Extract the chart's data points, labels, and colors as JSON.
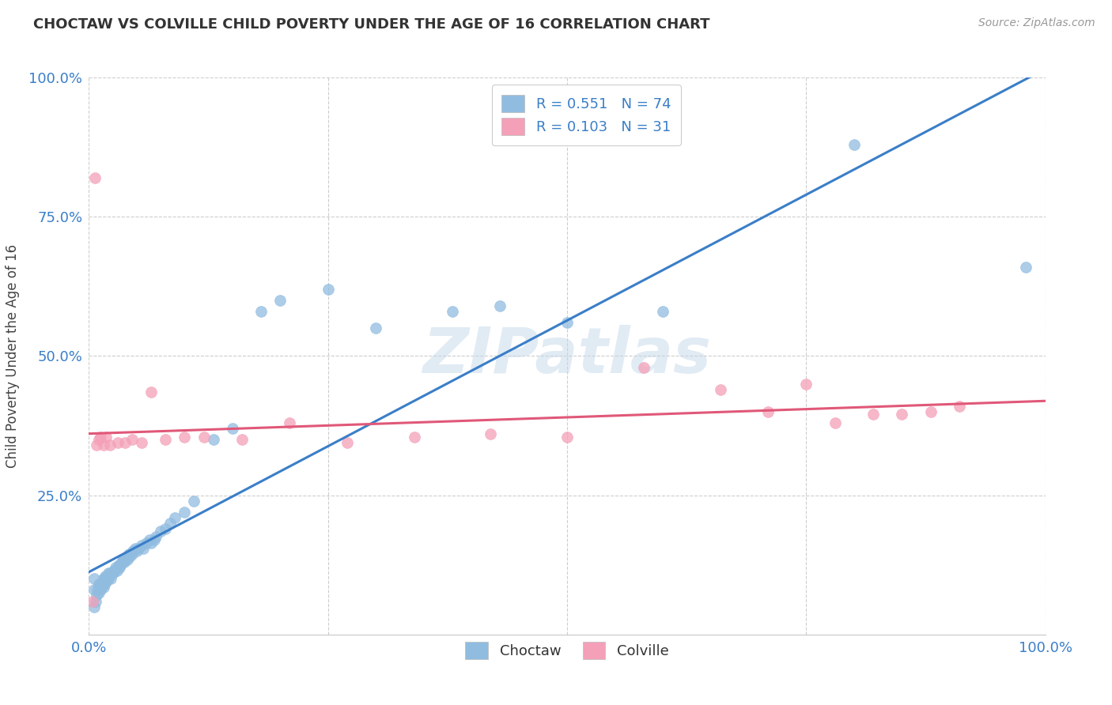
{
  "title": "CHOCTAW VS COLVILLE CHILD POVERTY UNDER THE AGE OF 16 CORRELATION CHART",
  "source": "Source: ZipAtlas.com",
  "ylabel": "Child Poverty Under the Age of 16",
  "xlim": [
    0,
    1
  ],
  "ylim": [
    0,
    1
  ],
  "xticklabels": [
    "0.0%",
    "",
    "",
    "",
    "100.0%"
  ],
  "yticklabels": [
    "",
    "25.0%",
    "50.0%",
    "75.0%",
    "100.0%"
  ],
  "legend_label1": "Choctaw",
  "legend_label2": "Colville",
  "R1": "0.551",
  "N1": "74",
  "R2": "0.103",
  "N2": "31",
  "color_choctaw": "#90bce0",
  "color_colville": "#f4a0b8",
  "trendline_choctaw_color": "#3a7ec8",
  "trendline_colville_color": "#e05878",
  "watermark": "ZIPatlas",
  "background_color": "#ffffff",
  "choctaw_x": [
    0.005,
    0.005,
    0.005,
    0.007,
    0.008,
    0.009,
    0.01,
    0.01,
    0.012,
    0.012,
    0.013,
    0.014,
    0.015,
    0.015,
    0.016,
    0.016,
    0.017,
    0.017,
    0.018,
    0.019,
    0.02,
    0.02,
    0.021,
    0.022,
    0.023,
    0.024,
    0.025,
    0.026,
    0.027,
    0.028,
    0.029,
    0.03,
    0.031,
    0.032,
    0.033,
    0.034,
    0.035,
    0.036,
    0.037,
    0.038,
    0.04,
    0.041,
    0.042,
    0.043,
    0.045,
    0.046,
    0.048,
    0.05,
    0.052,
    0.055,
    0.057,
    0.06,
    0.063,
    0.065,
    0.068,
    0.07,
    0.075,
    0.08,
    0.085,
    0.09,
    0.1,
    0.11,
    0.13,
    0.15,
    0.18,
    0.2,
    0.25,
    0.3,
    0.38,
    0.43,
    0.5,
    0.6,
    0.8,
    0.98
  ],
  "choctaw_y": [
    0.05,
    0.08,
    0.1,
    0.06,
    0.07,
    0.08,
    0.075,
    0.09,
    0.08,
    0.09,
    0.085,
    0.09,
    0.085,
    0.1,
    0.09,
    0.095,
    0.1,
    0.105,
    0.095,
    0.1,
    0.1,
    0.11,
    0.105,
    0.11,
    0.1,
    0.11,
    0.11,
    0.115,
    0.115,
    0.12,
    0.115,
    0.12,
    0.125,
    0.12,
    0.125,
    0.13,
    0.13,
    0.135,
    0.13,
    0.135,
    0.135,
    0.14,
    0.145,
    0.14,
    0.145,
    0.15,
    0.155,
    0.15,
    0.155,
    0.16,
    0.155,
    0.165,
    0.17,
    0.165,
    0.17,
    0.175,
    0.185,
    0.19,
    0.2,
    0.21,
    0.22,
    0.24,
    0.35,
    0.37,
    0.58,
    0.6,
    0.62,
    0.55,
    0.58,
    0.59,
    0.56,
    0.58,
    0.88,
    0.66
  ],
  "colville_x": [
    0.004,
    0.006,
    0.008,
    0.01,
    0.012,
    0.015,
    0.018,
    0.022,
    0.03,
    0.038,
    0.045,
    0.055,
    0.065,
    0.08,
    0.1,
    0.12,
    0.16,
    0.21,
    0.27,
    0.34,
    0.42,
    0.5,
    0.58,
    0.66,
    0.71,
    0.75,
    0.78,
    0.82,
    0.85,
    0.88,
    0.91
  ],
  "colville_y": [
    0.06,
    0.82,
    0.34,
    0.35,
    0.355,
    0.34,
    0.355,
    0.34,
    0.345,
    0.345,
    0.35,
    0.345,
    0.435,
    0.35,
    0.355,
    0.355,
    0.35,
    0.38,
    0.345,
    0.355,
    0.36,
    0.355,
    0.48,
    0.44,
    0.4,
    0.45,
    0.38,
    0.395,
    0.395,
    0.4,
    0.41
  ]
}
